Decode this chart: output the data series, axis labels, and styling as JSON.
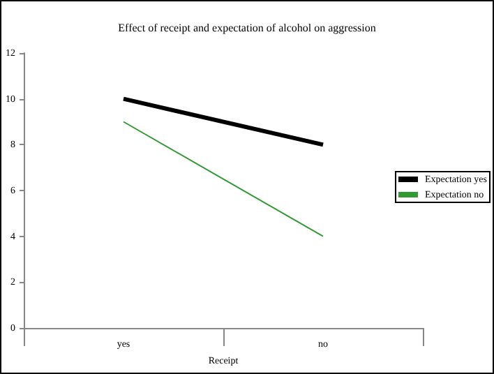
{
  "chart_data": {
    "type": "line",
    "title": "Effect of receipt and expectation of alcohol on aggression",
    "xlabel": "Receipt",
    "categories": [
      "yes",
      "no"
    ],
    "series": [
      {
        "name": "Expectation yes",
        "color": "#000000",
        "values": [
          10,
          8
        ]
      },
      {
        "name": "Expectation no",
        "color": "#339933",
        "values": [
          9,
          4
        ]
      }
    ],
    "ylim": [
      0,
      12
    ],
    "yticks": [
      0,
      2,
      4,
      6,
      8,
      10,
      12
    ],
    "grid": false,
    "legend": "right",
    "marker": "none"
  }
}
